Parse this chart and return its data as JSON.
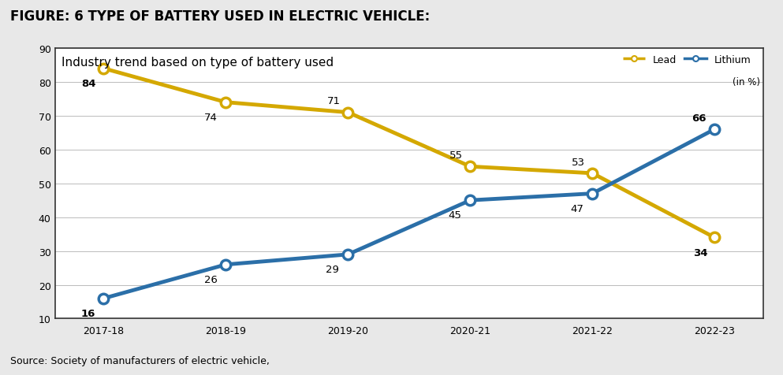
{
  "title_figure": "FIGURE: 6 TYPE OF BATTERY USED IN ELECTRIC VEHICLE:",
  "chart_title": "Industry trend based on type of battery used",
  "source_text": "Source: Society of manufacturers of electric vehicle,",
  "x_labels": [
    "2017-18",
    "2018-19",
    "2019-20",
    "2020-21",
    "2021-22",
    "2022-23"
  ],
  "lead_values": [
    84,
    74,
    71,
    55,
    53,
    34
  ],
  "lithium_values": [
    16,
    26,
    29,
    45,
    47,
    66
  ],
  "lead_color": "#D4A800",
  "lithium_color": "#2B6FA8",
  "marker_facecolor": "#FFFFFF",
  "ylim_min": 10,
  "ylim_max": 90,
  "yticks": [
    10,
    20,
    30,
    40,
    50,
    60,
    70,
    80,
    90
  ],
  "legend_lead_label": "Lead",
  "legend_lithium_label": "Lithium",
  "legend_unit": "(in %)",
  "fig_bg": "#E8E8E8",
  "chart_bg": "#FFFFFF",
  "box_bg": "#FFFFFF",
  "grid_color": "#BBBBBB",
  "title_fontsize": 12,
  "chart_title_fontsize": 11,
  "tick_fontsize": 9,
  "annotation_fontsize": 9.5,
  "source_fontsize": 9,
  "lead_bold_indices": [
    0
  ],
  "lithium_bold_indices": [
    5
  ],
  "both_bold_indices": [
    5,
    0
  ],
  "line_width": 3.5,
  "marker_size": 9,
  "marker_edge_width": 2.5
}
